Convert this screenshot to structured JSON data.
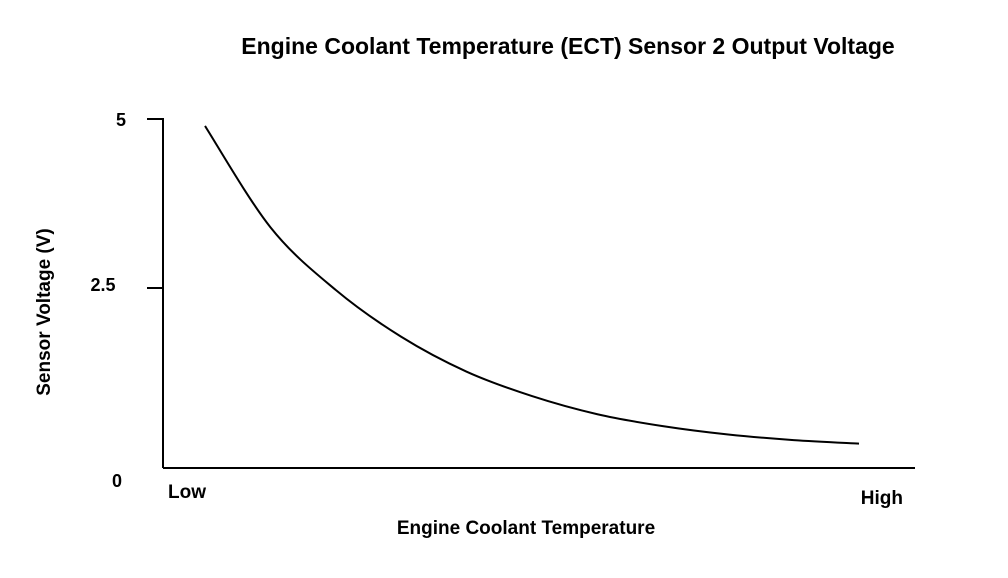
{
  "chart_data": {
    "type": "line",
    "title": "Engine Coolant Temperature (ECT) Sensor 2 Output Voltage",
    "xlabel": "Engine Coolant Temperature",
    "ylabel": "Sensor Voltage (V)",
    "x_tick_labels": [
      "Low",
      "High"
    ],
    "y_tick_labels": [
      "0",
      "2.5",
      "5"
    ],
    "ylim": [
      0,
      5
    ],
    "grid": false,
    "series": [
      {
        "color": "#000000",
        "x": [
          0.0,
          0.1,
          0.2,
          0.3,
          0.4,
          0.5,
          0.6,
          0.7,
          0.8,
          0.9,
          1.0
        ],
        "y": [
          4.9,
          3.45,
          2.55,
          1.88,
          1.38,
          1.03,
          0.77,
          0.6,
          0.48,
          0.4,
          0.35
        ]
      }
    ]
  }
}
